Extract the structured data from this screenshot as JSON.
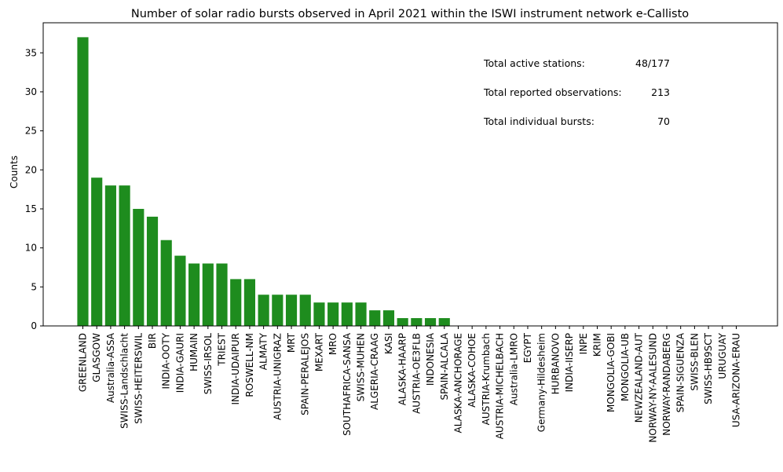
{
  "chart_data": {
    "type": "bar",
    "title": "Number of solar radio bursts observed in April 2021 within the ISWI instrument network e-Callisto",
    "xlabel": "",
    "ylabel": "Counts",
    "ylim": [
      0,
      38.85
    ],
    "yticks": [
      0,
      5,
      10,
      15,
      20,
      25,
      30,
      35
    ],
    "bar_color": "#1e8c1e",
    "grid": false,
    "categories": [
      "GREENLAND",
      "GLASGOW",
      "Australia-ASSA",
      "SWISS-Landschlacht",
      "SWISS-HEITERSWIL",
      "BIR",
      "INDIA-OOTY",
      "INDIA-GAURI",
      "HUMAIN",
      "SWISS-IRSOL",
      "TRIEST",
      "INDIA-UDAIPUR",
      "ROSWELL-NM",
      "ALMATY",
      "AUSTRIA-UNIGRAZ",
      "MRT",
      "SPAIN-PERALEJOS",
      "MEXART",
      "MRO",
      "SOUTHAFRICA-SANSA",
      "SWISS-MUHEN",
      "ALGERIA-CRAAG",
      "KASI",
      "ALASKA-HAARP",
      "AUSTRIA-OE3FLB",
      "INDONESIA",
      "SPAIN-ALCALA",
      "ALASKA-ANCHORAGE",
      "ALASKA-COHOE",
      "AUSTRIA-Krumbach",
      "AUSTRIA-MICHELBACH",
      "Australia-LMRO",
      "EGYPT",
      "Germany-Hildesheim",
      "HURBANOVO",
      "INDIA-IISERP",
      "INPE",
      "KRIM",
      "MONGOLIA-GOBI",
      "MONGOLIA-UB",
      "NEWZEALAND-AUT",
      "NORWAY-NY-AALESUND",
      "NORWAY-RANDABERG",
      "SPAIN-SIGUENZA",
      "SWISS-BLEN",
      "SWISS-HB9SCT",
      "URUGUAY",
      "USA-ARIZONA-ERAU"
    ],
    "values": [
      37,
      19,
      18,
      18,
      15,
      14,
      11,
      9,
      8,
      8,
      8,
      6,
      6,
      4,
      4,
      4,
      4,
      3,
      3,
      3,
      3,
      2,
      2,
      1,
      1,
      1,
      1,
      0,
      0,
      0,
      0,
      0,
      0,
      0,
      0,
      0,
      0,
      0,
      0,
      0,
      0,
      0,
      0,
      0,
      0,
      0,
      0,
      0
    ],
    "annotations": [
      {
        "label": "Total active stations:",
        "value": "48/177"
      },
      {
        "label": "Total reported observations:",
        "value": "213"
      },
      {
        "label": "Total individual bursts:",
        "value": "70"
      }
    ]
  }
}
